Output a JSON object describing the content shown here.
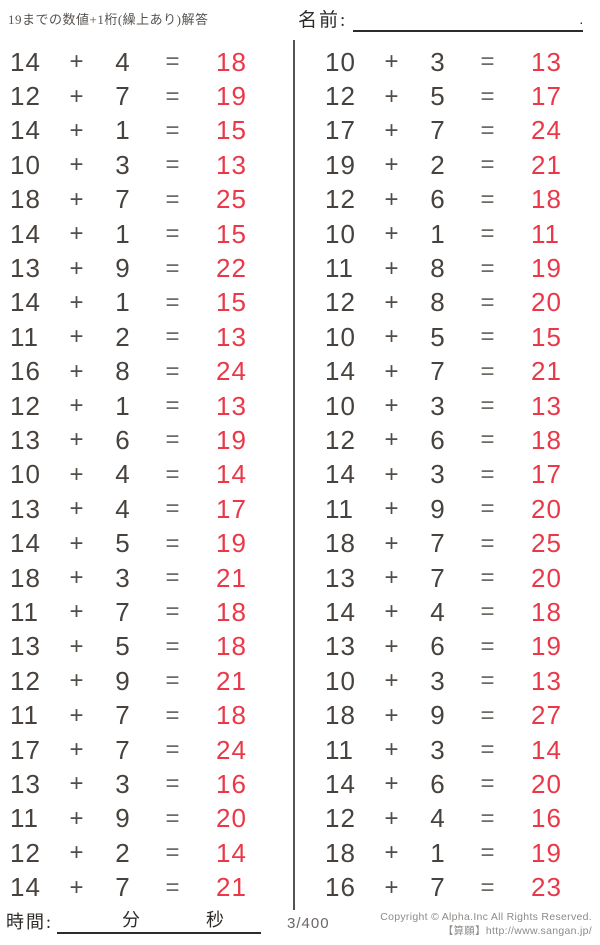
{
  "header": {
    "title": "19までの数値+1桁(繰上あり)解答",
    "name_label": "名前:",
    "name_line_end_mark": "."
  },
  "columns": [
    {
      "problems": [
        {
          "a": 14,
          "op": "+",
          "b": 4,
          "eq": "=",
          "ans": 18
        },
        {
          "a": 12,
          "op": "+",
          "b": 7,
          "eq": "=",
          "ans": 19
        },
        {
          "a": 14,
          "op": "+",
          "b": 1,
          "eq": "=",
          "ans": 15
        },
        {
          "a": 10,
          "op": "+",
          "b": 3,
          "eq": "=",
          "ans": 13
        },
        {
          "a": 18,
          "op": "+",
          "b": 7,
          "eq": "=",
          "ans": 25
        },
        {
          "a": 14,
          "op": "+",
          "b": 1,
          "eq": "=",
          "ans": 15
        },
        {
          "a": 13,
          "op": "+",
          "b": 9,
          "eq": "=",
          "ans": 22
        },
        {
          "a": 14,
          "op": "+",
          "b": 1,
          "eq": "=",
          "ans": 15
        },
        {
          "a": 11,
          "op": "+",
          "b": 2,
          "eq": "=",
          "ans": 13
        },
        {
          "a": 16,
          "op": "+",
          "b": 8,
          "eq": "=",
          "ans": 24
        },
        {
          "a": 12,
          "op": "+",
          "b": 1,
          "eq": "=",
          "ans": 13
        },
        {
          "a": 13,
          "op": "+",
          "b": 6,
          "eq": "=",
          "ans": 19
        },
        {
          "a": 10,
          "op": "+",
          "b": 4,
          "eq": "=",
          "ans": 14
        },
        {
          "a": 13,
          "op": "+",
          "b": 4,
          "eq": "=",
          "ans": 17
        },
        {
          "a": 14,
          "op": "+",
          "b": 5,
          "eq": "=",
          "ans": 19
        },
        {
          "a": 18,
          "op": "+",
          "b": 3,
          "eq": "=",
          "ans": 21
        },
        {
          "a": 11,
          "op": "+",
          "b": 7,
          "eq": "=",
          "ans": 18
        },
        {
          "a": 13,
          "op": "+",
          "b": 5,
          "eq": "=",
          "ans": 18
        },
        {
          "a": 12,
          "op": "+",
          "b": 9,
          "eq": "=",
          "ans": 21
        },
        {
          "a": 11,
          "op": "+",
          "b": 7,
          "eq": "=",
          "ans": 18
        },
        {
          "a": 17,
          "op": "+",
          "b": 7,
          "eq": "=",
          "ans": 24
        },
        {
          "a": 13,
          "op": "+",
          "b": 3,
          "eq": "=",
          "ans": 16
        },
        {
          "a": 11,
          "op": "+",
          "b": 9,
          "eq": "=",
          "ans": 20
        },
        {
          "a": 12,
          "op": "+",
          "b": 2,
          "eq": "=",
          "ans": 14
        },
        {
          "a": 14,
          "op": "+",
          "b": 7,
          "eq": "=",
          "ans": 21
        }
      ]
    },
    {
      "problems": [
        {
          "a": 10,
          "op": "+",
          "b": 3,
          "eq": "=",
          "ans": 13
        },
        {
          "a": 12,
          "op": "+",
          "b": 5,
          "eq": "=",
          "ans": 17
        },
        {
          "a": 17,
          "op": "+",
          "b": 7,
          "eq": "=",
          "ans": 24
        },
        {
          "a": 19,
          "op": "+",
          "b": 2,
          "eq": "=",
          "ans": 21
        },
        {
          "a": 12,
          "op": "+",
          "b": 6,
          "eq": "=",
          "ans": 18
        },
        {
          "a": 10,
          "op": "+",
          "b": 1,
          "eq": "=",
          "ans": 11
        },
        {
          "a": 11,
          "op": "+",
          "b": 8,
          "eq": "=",
          "ans": 19
        },
        {
          "a": 12,
          "op": "+",
          "b": 8,
          "eq": "=",
          "ans": 20
        },
        {
          "a": 10,
          "op": "+",
          "b": 5,
          "eq": "=",
          "ans": 15
        },
        {
          "a": 14,
          "op": "+",
          "b": 7,
          "eq": "=",
          "ans": 21
        },
        {
          "a": 10,
          "op": "+",
          "b": 3,
          "eq": "=",
          "ans": 13
        },
        {
          "a": 12,
          "op": "+",
          "b": 6,
          "eq": "=",
          "ans": 18
        },
        {
          "a": 14,
          "op": "+",
          "b": 3,
          "eq": "=",
          "ans": 17
        },
        {
          "a": 11,
          "op": "+",
          "b": 9,
          "eq": "=",
          "ans": 20
        },
        {
          "a": 18,
          "op": "+",
          "b": 7,
          "eq": "=",
          "ans": 25
        },
        {
          "a": 13,
          "op": "+",
          "b": 7,
          "eq": "=",
          "ans": 20
        },
        {
          "a": 14,
          "op": "+",
          "b": 4,
          "eq": "=",
          "ans": 18
        },
        {
          "a": 13,
          "op": "+",
          "b": 6,
          "eq": "=",
          "ans": 19
        },
        {
          "a": 10,
          "op": "+",
          "b": 3,
          "eq": "=",
          "ans": 13
        },
        {
          "a": 18,
          "op": "+",
          "b": 9,
          "eq": "=",
          "ans": 27
        },
        {
          "a": 11,
          "op": "+",
          "b": 3,
          "eq": "=",
          "ans": 14
        },
        {
          "a": 14,
          "op": "+",
          "b": 6,
          "eq": "=",
          "ans": 20
        },
        {
          "a": 12,
          "op": "+",
          "b": 4,
          "eq": "=",
          "ans": 16
        },
        {
          "a": 18,
          "op": "+",
          "b": 1,
          "eq": "=",
          "ans": 19
        },
        {
          "a": 16,
          "op": "+",
          "b": 7,
          "eq": "=",
          "ans": 23
        }
      ]
    }
  ],
  "footer": {
    "time_label": "時間:",
    "minutes_label": "分",
    "seconds_label": "秒",
    "page_indicator": "3/400",
    "copyright_line1": "Copyright © Alpha.Inc All Rights Reserved.",
    "copyright_line2": "【算願】http://www.sangan.jp/"
  },
  "colors": {
    "answer_red": "#ea3848",
    "text_black": "#47423e",
    "divider_gray": "#57524e"
  }
}
